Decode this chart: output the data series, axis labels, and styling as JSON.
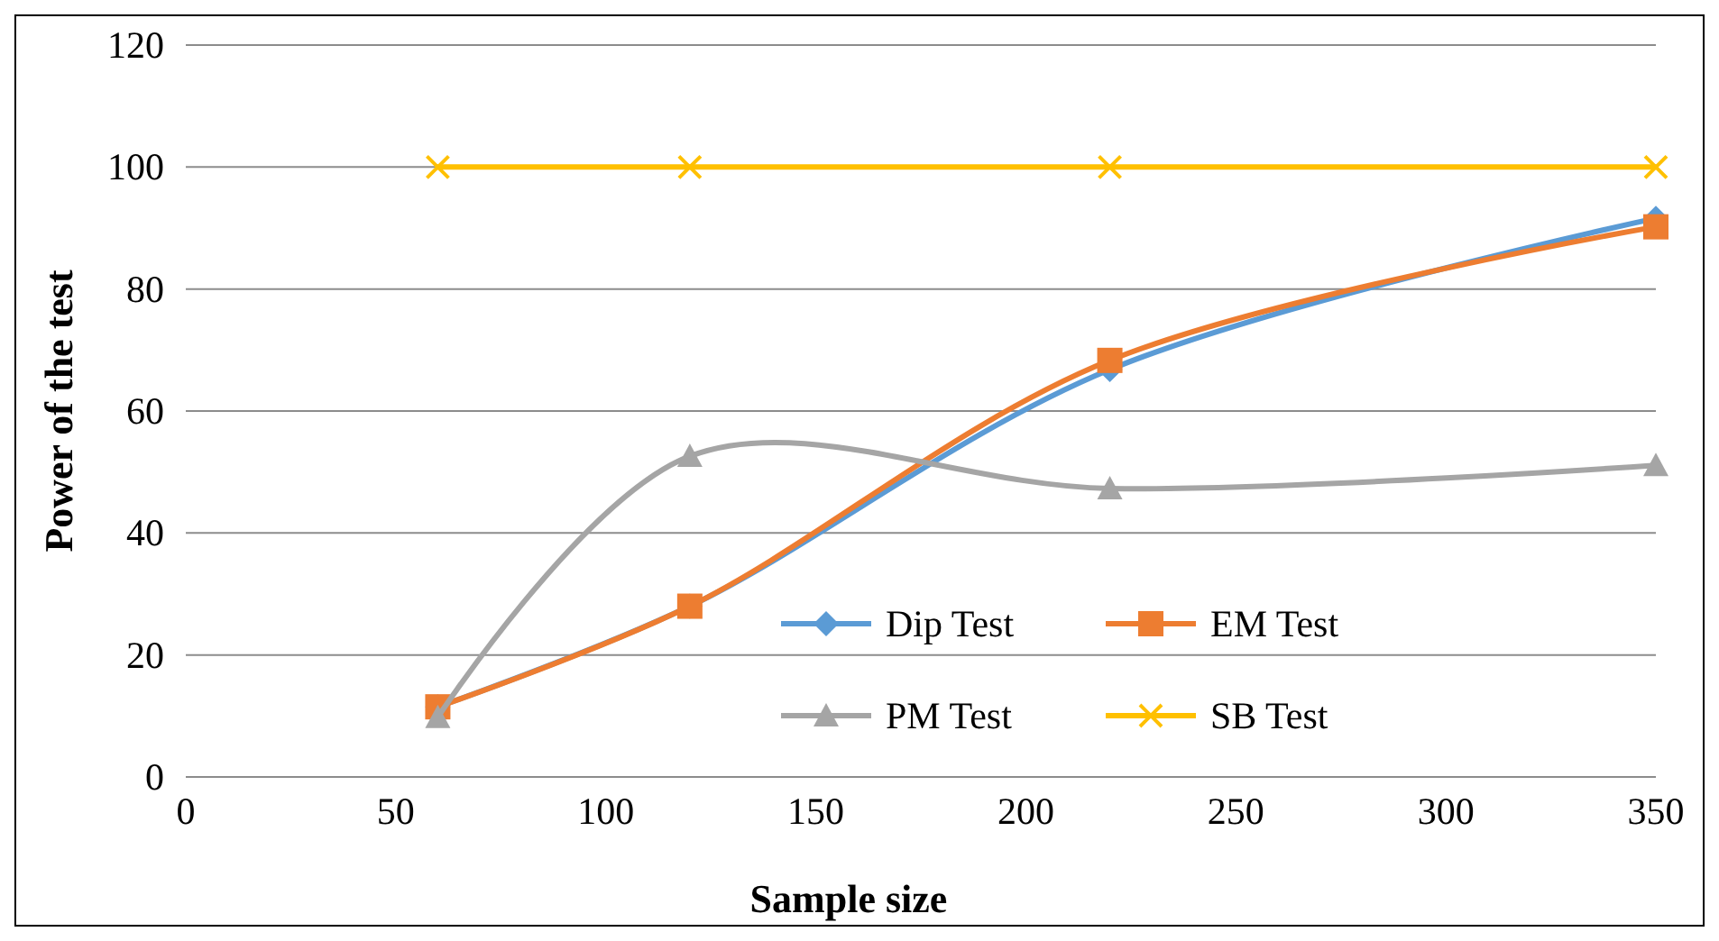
{
  "chart_data": {
    "type": "line",
    "xlabel": "Sample size",
    "ylabel": "Power of the test",
    "x": [
      60,
      120,
      220,
      350
    ],
    "series": [
      {
        "name": "Dip Test",
        "color": "#5b9bd5",
        "values": [
          11.5,
          28,
          66.8,
          91.6
        ],
        "marker": "diamond"
      },
      {
        "name": "EM Test",
        "color": "#ed7d31",
        "values": [
          11.5,
          28,
          68.3,
          90.2
        ],
        "marker": "square"
      },
      {
        "name": "PM Test",
        "color": "#a5a5a5",
        "values": [
          9.8,
          52.6,
          47.3,
          51.1
        ],
        "marker": "triangle"
      },
      {
        "name": "SB Test",
        "color": "#ffc000",
        "values": [
          100,
          100,
          100,
          100
        ],
        "marker": "cross"
      }
    ],
    "xlim": [
      0,
      350
    ],
    "xticks": [
      0,
      50,
      100,
      150,
      200,
      250,
      300,
      350
    ],
    "ylim": [
      0,
      120
    ],
    "yticks": [
      0,
      20,
      40,
      60,
      80,
      100,
      120
    ],
    "grid": "y",
    "legend": "bottom right",
    "line_style": "solid"
  }
}
